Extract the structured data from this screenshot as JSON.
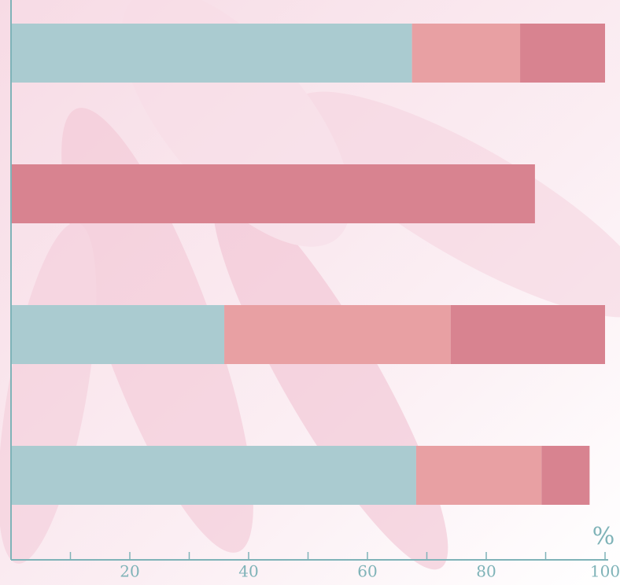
{
  "chart_data": {
    "type": "stacked-bar-horizontal",
    "categories": [
      null,
      null,
      null,
      null
    ],
    "series": [
      {
        "color": "#aacbd0",
        "values": [
          67.5,
          0,
          35.9,
          68.2
        ]
      },
      {
        "color": "#e8a0a3",
        "values": [
          18.2,
          0,
          38.1,
          21.1
        ]
      },
      {
        "color": "#d88390",
        "values": [
          14.3,
          88.2,
          26.0,
          8.1
        ]
      }
    ],
    "xlim": [
      0,
      100
    ],
    "xticks": [
      20,
      40,
      60,
      80,
      100
    ],
    "xminorticks": [
      10,
      30,
      50,
      70,
      90
    ],
    "xlabel": "%",
    "axis_color": "#7fb3b8"
  }
}
